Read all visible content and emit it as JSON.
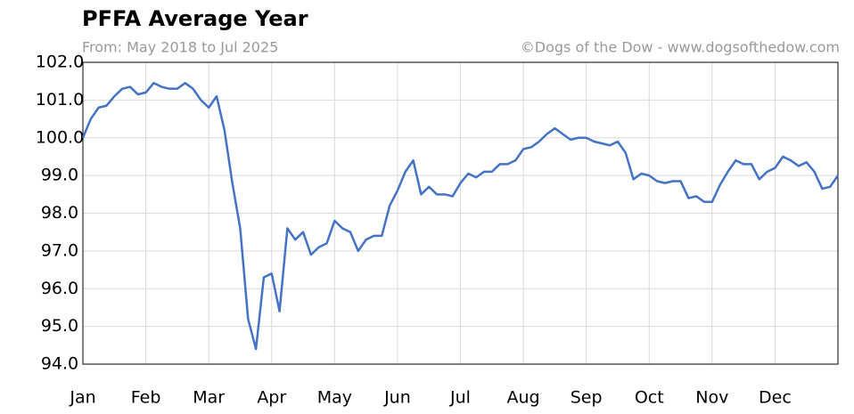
{
  "chart_data": {
    "type": "line",
    "title": "PFFA Average Year",
    "subtitle": "From: May 2018 to Jul 2025",
    "credit": "©Dogs of the Dow - www.dogsofthedow.com",
    "categories": [
      "Jan",
      null,
      null,
      null,
      null,
      null,
      null,
      null,
      "Feb",
      null,
      null,
      null,
      null,
      null,
      null,
      null,
      "Mar",
      null,
      null,
      null,
      null,
      null,
      null,
      null,
      "Apr",
      null,
      null,
      null,
      null,
      null,
      null,
      null,
      "May",
      null,
      null,
      null,
      null,
      null,
      null,
      null,
      "Jun",
      null,
      null,
      null,
      null,
      null,
      null,
      null,
      "Jul",
      null,
      null,
      null,
      null,
      null,
      null,
      null,
      "Aug",
      null,
      null,
      null,
      null,
      null,
      null,
      null,
      "Sep",
      null,
      null,
      null,
      null,
      null,
      null,
      null,
      "Oct",
      null,
      null,
      null,
      null,
      null,
      null,
      null,
      "Nov",
      null,
      null,
      null,
      null,
      null,
      null,
      null,
      "Dec",
      null,
      null,
      null,
      null,
      null,
      null,
      null,
      null
    ],
    "series": [
      {
        "name": "PFFA",
        "color": "#4472c4",
        "values": [
          100.0,
          100.5,
          100.8,
          100.85,
          101.1,
          101.3,
          101.35,
          101.15,
          101.2,
          101.45,
          101.35,
          101.3,
          101.3,
          101.45,
          101.3,
          101.0,
          100.8,
          101.1,
          100.2,
          98.8,
          97.6,
          95.2,
          94.4,
          96.3,
          96.4,
          95.4,
          97.6,
          97.3,
          97.5,
          96.9,
          97.1,
          97.2,
          97.8,
          97.6,
          97.5,
          97.0,
          97.3,
          97.4,
          97.4,
          98.2,
          98.6,
          99.1,
          99.4,
          98.5,
          98.7,
          98.5,
          98.5,
          98.45,
          98.8,
          99.05,
          98.95,
          99.1,
          99.1,
          99.3,
          99.3,
          99.4,
          99.7,
          99.75,
          99.9,
          100.1,
          100.25,
          100.1,
          99.95,
          100.0,
          100.0,
          99.9,
          99.85,
          99.8,
          99.9,
          99.6,
          98.9,
          99.05,
          99.0,
          98.85,
          98.8,
          98.85,
          98.85,
          98.4,
          98.45,
          98.3,
          98.3,
          98.75,
          99.1,
          99.4,
          99.3,
          99.3,
          98.9,
          99.1,
          99.2,
          99.5,
          99.4,
          99.25,
          99.35,
          99.1,
          98.65,
          98.7,
          99.0
        ]
      }
    ],
    "ylim": [
      94,
      102
    ],
    "yticks": [
      {
        "value": 94,
        "label": "94.0"
      },
      {
        "value": 95,
        "label": "95.0"
      },
      {
        "value": 96,
        "label": "96.0"
      },
      {
        "value": 97,
        "label": "97.0"
      },
      {
        "value": 98,
        "label": "98.0"
      },
      {
        "value": 99,
        "label": "99.0"
      },
      {
        "value": 100,
        "label": "100.0"
      },
      {
        "value": 101,
        "label": "101.0"
      },
      {
        "value": 102,
        "label": "102.0"
      }
    ],
    "grid": true
  }
}
